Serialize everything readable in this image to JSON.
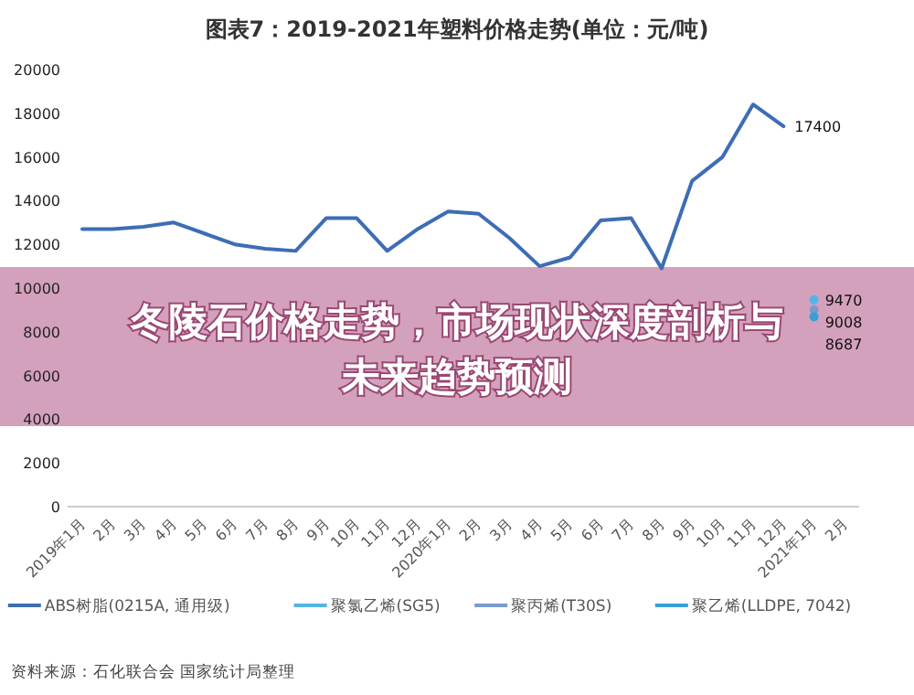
{
  "chart_data": {
    "type": "line",
    "title": "图表7：2019-2021年塑料价格走势(单位：元/吨)",
    "categories": [
      "2019年1月",
      "2月",
      "3月",
      "4月",
      "5月",
      "6月",
      "7月",
      "8月",
      "9月",
      "10月",
      "11月",
      "12月",
      "2020年1月",
      "2月",
      "3月",
      "4月",
      "5月",
      "6月",
      "7月",
      "8月",
      "9月",
      "10月",
      "11月",
      "12月",
      "2021年1月",
      "2月"
    ],
    "series": [
      {
        "name": "ABS树脂(0215A, 通用级)",
        "color": "#3d6db5",
        "values": [
          12700,
          12700,
          12800,
          13000,
          12500,
          12000,
          11800,
          11700,
          13200,
          13200,
          11700,
          12700,
          13500,
          13400,
          12300,
          11000,
          11400,
          13100,
          13200,
          10900,
          14900,
          16000,
          18400,
          17400,
          null,
          null
        ],
        "value_labels": [
          null,
          null,
          null,
          null,
          null,
          null,
          null,
          null,
          null,
          null,
          null,
          null,
          null,
          null,
          null,
          null,
          null,
          null,
          null,
          null,
          null,
          null,
          null,
          "17400",
          null,
          null
        ]
      },
      {
        "name": "聚氯乙烯(SG5)",
        "color": "#55b4e6",
        "marker": "circle",
        "values": [
          null,
          null,
          null,
          null,
          null,
          null,
          null,
          null,
          null,
          null,
          null,
          null,
          null,
          null,
          null,
          null,
          null,
          null,
          null,
          null,
          null,
          null,
          null,
          null,
          9470,
          null
        ],
        "value_labels": [
          null,
          null,
          null,
          null,
          null,
          null,
          null,
          null,
          null,
          null,
          null,
          null,
          null,
          null,
          null,
          null,
          null,
          null,
          null,
          null,
          null,
          null,
          null,
          null,
          "9470",
          null
        ]
      },
      {
        "name": "聚丙烯(T30S)",
        "color": "#7b9bd0",
        "marker": "circle",
        "values": [
          null,
          null,
          null,
          null,
          null,
          null,
          null,
          null,
          null,
          null,
          null,
          null,
          null,
          null,
          null,
          null,
          null,
          null,
          null,
          null,
          null,
          null,
          null,
          null,
          9008,
          null
        ],
        "value_labels": [
          null,
          null,
          null,
          null,
          null,
          null,
          null,
          null,
          null,
          null,
          null,
          null,
          null,
          null,
          null,
          null,
          null,
          null,
          null,
          null,
          null,
          null,
          null,
          null,
          "9008",
          null
        ]
      },
      {
        "name": "聚乙烯(LLDPE, 7042)",
        "color": "#3a9fd6",
        "marker": "circle",
        "values": [
          null,
          null,
          null,
          null,
          null,
          null,
          null,
          null,
          null,
          null,
          null,
          null,
          null,
          null,
          null,
          null,
          null,
          null,
          null,
          null,
          null,
          null,
          null,
          null,
          8687,
          null
        ],
        "value_labels": [
          null,
          null,
          null,
          null,
          null,
          null,
          null,
          null,
          null,
          null,
          null,
          null,
          null,
          null,
          null,
          null,
          null,
          null,
          null,
          null,
          null,
          null,
          null,
          null,
          "8687",
          null
        ]
      }
    ],
    "ylim": [
      0,
      20000
    ],
    "yticks": [
      0,
      2000,
      4000,
      6000,
      8000,
      10000,
      12000,
      14000,
      16000,
      18000,
      20000
    ],
    "legend": "bottom",
    "annotations": [
      "冬陵石价格走势，市场现状深度剖析与未来趋势预测",
      "资料来源：石化联合会 国家统计局整理"
    ]
  }
}
